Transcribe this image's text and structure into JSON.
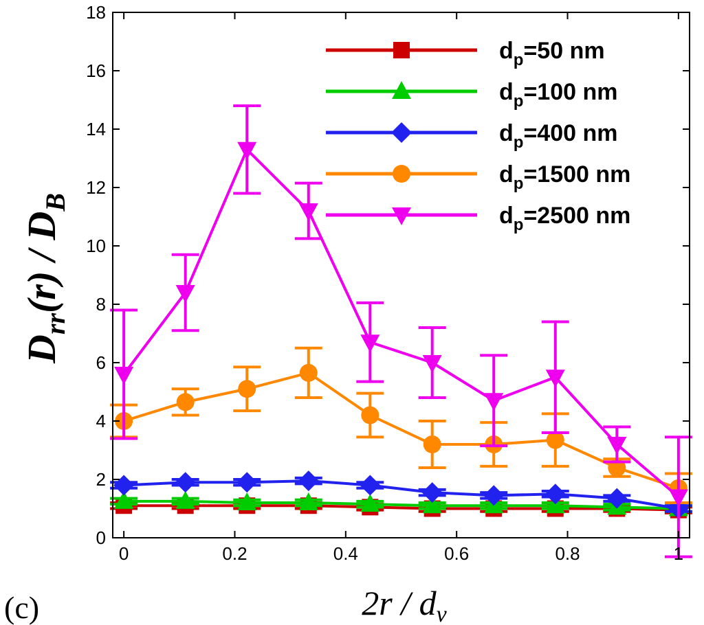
{
  "chart_data": {
    "type": "line",
    "panel_label": "(c)",
    "xlabel_parts": [
      "2r / d",
      "v"
    ],
    "ylabel_parts": [
      "D",
      "rr",
      "(r) / D",
      "B"
    ],
    "xlim": [
      -0.02,
      1.02
    ],
    "ylim": [
      0,
      18
    ],
    "xticks": [
      0,
      0.2,
      0.4,
      0.6,
      0.8,
      1
    ],
    "xtick_labels": [
      "0",
      "0.2",
      "0.4",
      "0.6",
      "0.8",
      "1"
    ],
    "yticks": [
      0,
      2,
      4,
      6,
      8,
      10,
      12,
      14,
      16,
      18
    ],
    "ytick_labels": [
      "0",
      "2",
      "4",
      "6",
      "8",
      "10",
      "12",
      "14",
      "16",
      "18"
    ],
    "x": [
      0,
      0.111,
      0.222,
      0.333,
      0.444,
      0.556,
      0.667,
      0.778,
      0.889,
      1.0
    ],
    "legend_position": "top-right",
    "series": [
      {
        "name": "d_p=50 nm",
        "legend_base": "d",
        "legend_sub": "p",
        "legend_rest": "=50 nm",
        "color": "#cc0000",
        "marker": "square",
        "values": [
          1.1,
          1.1,
          1.1,
          1.1,
          1.05,
          1.0,
          1.0,
          1.0,
          1.0,
          0.95
        ],
        "errors": [
          0.1,
          0.1,
          0.1,
          0.1,
          0.1,
          0.1,
          0.1,
          0.1,
          0.1,
          0.1
        ]
      },
      {
        "name": "d_p=100 nm",
        "legend_base": "d",
        "legend_sub": "p",
        "legend_rest": "=100 nm",
        "color": "#00cc00",
        "marker": "triangle-up",
        "values": [
          1.25,
          1.25,
          1.2,
          1.2,
          1.15,
          1.1,
          1.1,
          1.1,
          1.05,
          1.0
        ],
        "errors": [
          0.1,
          0.1,
          0.1,
          0.1,
          0.1,
          0.1,
          0.1,
          0.1,
          0.1,
          0.1
        ]
      },
      {
        "name": "d_p=400 nm",
        "legend_base": "d",
        "legend_sub": "p",
        "legend_rest": "=400 nm",
        "color": "#2222ee",
        "marker": "diamond",
        "values": [
          1.8,
          1.9,
          1.9,
          1.95,
          1.8,
          1.55,
          1.45,
          1.5,
          1.35,
          1.0
        ],
        "errors": [
          0.1,
          0.1,
          0.1,
          0.1,
          0.1,
          0.1,
          0.1,
          0.1,
          0.1,
          0.1
        ]
      },
      {
        "name": "d_p=1500 nm",
        "legend_base": "d",
        "legend_sub": "p",
        "legend_rest": "=1500 nm",
        "color": "#ff8800",
        "marker": "circle",
        "values": [
          4.0,
          4.65,
          5.1,
          5.65,
          4.2,
          3.2,
          3.2,
          3.35,
          2.4,
          1.7
        ],
        "errors": [
          0.55,
          0.45,
          0.75,
          0.85,
          0.75,
          0.8,
          0.75,
          0.9,
          0.3,
          0.5
        ]
      },
      {
        "name": "d_p=2500 nm",
        "legend_base": "d",
        "legend_sub": "p",
        "legend_rest": "=2500 nm",
        "color": "#ee00ee",
        "marker": "triangle-down",
        "values": [
          5.6,
          8.4,
          13.3,
          11.2,
          6.7,
          6.0,
          4.7,
          5.5,
          3.2,
          1.4
        ],
        "errors": [
          2.2,
          1.3,
          1.5,
          0.95,
          1.35,
          1.2,
          1.55,
          1.9,
          0.6,
          2.05
        ]
      }
    ]
  }
}
